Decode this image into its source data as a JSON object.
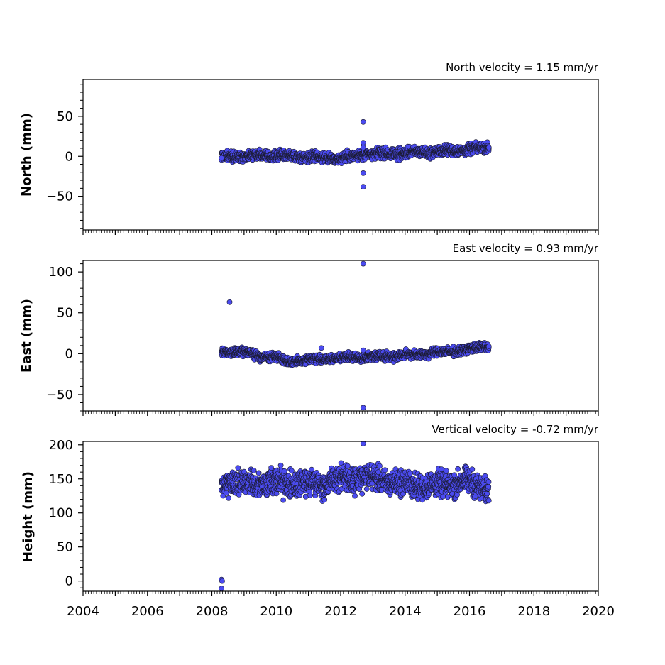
{
  "chart_data": [
    {
      "type": "scatter",
      "title": "North velocity = 1.15 mm/yr",
      "xlabel": "",
      "ylabel": "North (mm)",
      "xlim": [
        2004,
        2020
      ],
      "ylim": [
        -92,
        96
      ],
      "yticks": [
        50,
        0,
        -50
      ],
      "ytick_labels": [
        "50",
        "0",
        "−50"
      ],
      "x_start": 2008.3,
      "x_end": 2016.6,
      "trend": [
        [
          2008.3,
          0
        ],
        [
          2009.5,
          1
        ],
        [
          2011.0,
          0
        ],
        [
          2012.0,
          -3
        ],
        [
          2012.7,
          2
        ],
        [
          2014.0,
          4
        ],
        [
          2015.5,
          7
        ],
        [
          2016.6,
          11
        ]
      ],
      "noise": 3,
      "points": [
        {
          "x": 2008.3,
          "y": -2
        },
        {
          "x": 2012.7,
          "y": 43
        },
        {
          "x": 2012.7,
          "y": 17
        },
        {
          "x": 2012.7,
          "y": 11
        },
        {
          "x": 2012.7,
          "y": -21
        },
        {
          "x": 2012.7,
          "y": -38
        },
        {
          "x": 2016.6,
          "y": 11
        }
      ]
    },
    {
      "type": "scatter",
      "title": "East velocity = 0.93 mm/yr",
      "xlabel": "",
      "ylabel": "East (mm)",
      "xlim": [
        2004,
        2020
      ],
      "ylim": [
        -70,
        114
      ],
      "yticks": [
        100,
        50,
        0,
        -50
      ],
      "ytick_labels": [
        "100",
        "50",
        "0",
        "−50"
      ],
      "x_start": 2008.3,
      "x_end": 2016.6,
      "trend": [
        [
          2008.3,
          2
        ],
        [
          2009.0,
          2
        ],
        [
          2009.5,
          -3
        ],
        [
          2010.1,
          -5
        ],
        [
          2010.35,
          -10
        ],
        [
          2011.0,
          -7
        ],
        [
          2012.7,
          -4
        ],
        [
          2014.0,
          -2
        ],
        [
          2015.5,
          3
        ],
        [
          2016.6,
          9
        ]
      ],
      "noise": 2.5,
      "points": [
        {
          "x": 2008.55,
          "y": 63
        },
        {
          "x": 2011.4,
          "y": 7
        },
        {
          "x": 2012.7,
          "y": 110
        },
        {
          "x": 2012.7,
          "y": 4
        },
        {
          "x": 2012.7,
          "y": -66
        },
        {
          "x": 2016.6,
          "y": 9
        }
      ]
    },
    {
      "type": "scatter",
      "title": "Vertical velocity = -0.72 mm/yr",
      "xlabel": "",
      "ylabel": "Height (mm)",
      "xlim": [
        2004,
        2020
      ],
      "ylim": [
        -15,
        205
      ],
      "yticks": [
        200,
        150,
        100,
        50,
        0
      ],
      "ytick_labels": [
        "200",
        "150",
        "100",
        "50",
        "0"
      ],
      "xticks": [
        2004,
        2006,
        2008,
        2010,
        2012,
        2014,
        2016,
        2018,
        2020
      ],
      "xtick_labels": [
        "2004",
        "2006",
        "2008",
        "2010",
        "2012",
        "2014",
        "2016",
        "2018",
        "2020"
      ],
      "x_start": 2008.3,
      "x_end": 2016.6,
      "trend": [
        [
          2008.3,
          148
        ],
        [
          2009.0,
          143
        ],
        [
          2010.0,
          145
        ],
        [
          2011.0,
          142
        ],
        [
          2012.0,
          150
        ],
        [
          2012.8,
          152
        ],
        [
          2014.0,
          142
        ],
        [
          2015.0,
          140
        ],
        [
          2015.8,
          146
        ],
        [
          2016.6,
          135
        ]
      ],
      "noise": 9,
      "points": [
        {
          "x": 2008.3,
          "y": 2
        },
        {
          "x": 2008.32,
          "y": 0
        },
        {
          "x": 2008.3,
          "y": -11
        },
        {
          "x": 2012.7,
          "y": 202
        }
      ]
    }
  ],
  "colors": {
    "marker_fill": "#4b4bf0",
    "marker_edge": "#1a1a2e",
    "axes": "#000000"
  }
}
